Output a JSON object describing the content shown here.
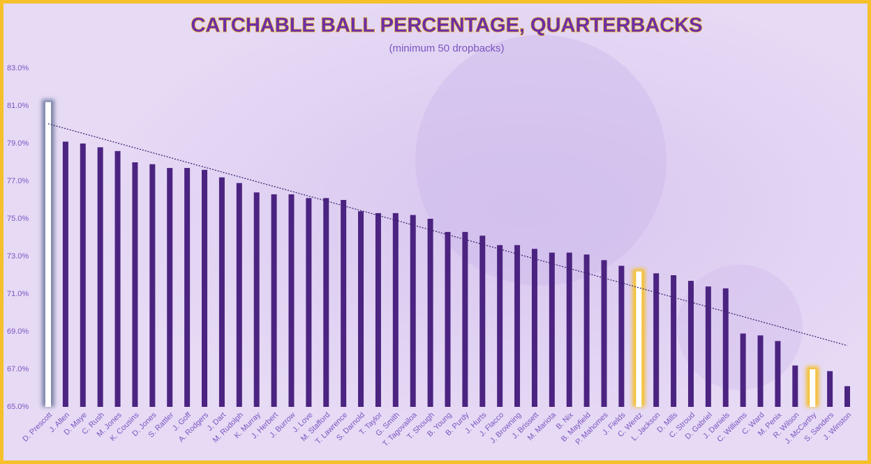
{
  "chart_data": {
    "type": "bar",
    "title": "CATCHABLE BALL PERCENTAGE, QUARTERBACKS",
    "subtitle": "(minimum 50 dropbacks)",
    "categories": [
      "D. Prescott",
      "J. Allen",
      "D. Maye",
      "C. Rush",
      "M. Jones",
      "K. Cousins",
      "D. Jones",
      "S. Rattler",
      "J. Goff",
      "A. Rodgers",
      "J. Dart",
      "M. Rudolph",
      "K. Murray",
      "J. Herbert",
      "J. Burrow",
      "J. Love",
      "M. Stafford",
      "T. Lawrence",
      "S. Darnold",
      "T. Taylor",
      "G. Smith",
      "T. Tagovailoa",
      "T. Shough",
      "B. Young",
      "B. Purdy",
      "J. Hurts",
      "J. Flacco",
      "J. Browning",
      "J. Brissett",
      "M. Mariota",
      "B. Nix",
      "B. Mayfield",
      "P. Mahomes",
      "J. Fields",
      "C. Wentz",
      "L. Jackson",
      "D. Mills",
      "C. Stroud",
      "D. Gabriel",
      "J. Daniels",
      "C. Williams",
      "C. Ward",
      "M. Penix",
      "R. Wilson",
      "J. McCarthy",
      "S. Sanders",
      "J. Winston"
    ],
    "values": [
      81.2,
      79.1,
      79.0,
      78.8,
      78.6,
      78.0,
      77.9,
      77.7,
      77.7,
      77.6,
      77.2,
      76.9,
      76.4,
      76.3,
      76.3,
      76.1,
      76.1,
      76.0,
      75.4,
      75.3,
      75.3,
      75.2,
      75.0,
      74.3,
      74.3,
      74.1,
      73.6,
      73.6,
      73.4,
      73.2,
      73.2,
      73.1,
      72.8,
      72.5,
      72.2,
      72.1,
      72.0,
      71.7,
      71.4,
      71.3,
      68.9,
      68.8,
      68.5,
      67.2,
      67.0,
      66.9,
      66.1
    ],
    "color": "#4b2380",
    "highlights": [
      {
        "category": "D. Prescott",
        "color": "#ffffff",
        "glow": "#7d86a8"
      },
      {
        "category": "C. Wentz",
        "color": "#ffffff",
        "glow": "#f5c02a"
      },
      {
        "category": "J. McCarthy",
        "color": "#ffffff",
        "glow": "#f5c02a"
      }
    ],
    "trendline": true,
    "ylim": [
      65,
      83
    ],
    "yticks": [
      {
        "value": 65,
        "label": "65.0%"
      },
      {
        "value": 67,
        "label": "67.0%"
      },
      {
        "value": 69,
        "label": "69.0%"
      },
      {
        "value": 71,
        "label": "71.0%"
      },
      {
        "value": 73,
        "label": "73.0%"
      },
      {
        "value": 75,
        "label": "75.0%"
      },
      {
        "value": 77,
        "label": "77.0%"
      },
      {
        "value": 79,
        "label": "79.0%"
      },
      {
        "value": 81,
        "label": "81.0%"
      },
      {
        "value": 83,
        "label": "83.0%"
      }
    ],
    "grid": false
  }
}
